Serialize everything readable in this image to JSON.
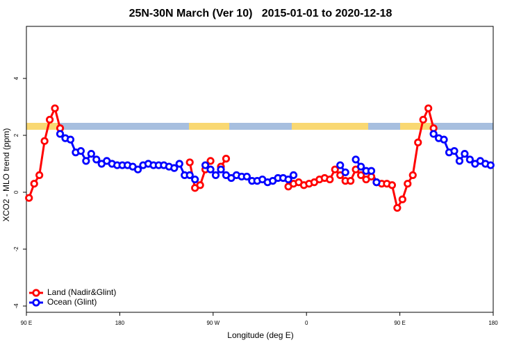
{
  "chart_data": {
    "type": "line",
    "title": "25N-30N March (Ver 10)   2015-01-01 to 2020-12-18",
    "xlabel": "Longitude (deg E)",
    "ylabel": "XCO2 - MLO trend (ppm)",
    "xlim": [
      90,
      540
    ],
    "ylim": [
      -4.22,
      5.83
    ],
    "xticks": [
      {
        "value": 90,
        "label": "90 E"
      },
      180,
      {
        "value": 270,
        "label": "90 W"
      },
      {
        "value": 360,
        "label": "0"
      },
      {
        "value": 450,
        "label": "90 E"
      },
      {
        "value": 540,
        "label": "180"
      }
    ],
    "yticks": [
      -4,
      -2,
      0,
      2,
      4
    ],
    "legend": "bottom-left",
    "x": [
      92.5,
      97.5,
      102.5,
      107.5,
      112.5,
      117.5,
      122.5,
      127.5,
      132.5,
      137.5,
      142.5,
      147.5,
      152.5,
      157.5,
      162.5,
      167.5,
      172.5,
      177.5,
      182.5,
      187.5,
      192.5,
      197.5,
      202.5,
      207.5,
      212.5,
      217.5,
      222.5,
      227.5,
      232.5,
      237.5,
      242.5,
      247.5,
      252.5,
      257.5,
      262.5,
      267.5,
      272.5,
      277.5,
      282.5,
      287.5,
      292.5,
      297.5,
      302.5,
      307.5,
      312.5,
      317.5,
      322.5,
      327.5,
      332.5,
      337.5,
      342.5,
      347.5,
      352.5,
      357.5,
      362.5,
      367.5,
      372.5,
      377.5,
      382.5,
      387.5,
      392.5,
      397.5,
      402.5,
      407.5,
      412.5,
      417.5,
      422.5,
      427.5,
      432.5,
      437.5,
      442.5,
      447.5,
      452.5,
      457.5,
      462.5,
      467.5,
      472.5,
      477.5,
      482.5,
      487.5,
      492.5,
      497.5,
      502.5,
      507.5,
      512.5,
      517.5,
      522.5,
      527.5,
      532.5,
      537.5
    ],
    "series": [
      {
        "name": "Land (Nadir&Glint)",
        "color": "#ff0000",
        "values": [
          -0.2,
          0.3,
          0.6,
          1.8,
          2.55,
          2.95,
          2.25,
          null,
          null,
          null,
          null,
          null,
          null,
          null,
          null,
          null,
          null,
          null,
          null,
          null,
          null,
          null,
          null,
          null,
          null,
          null,
          null,
          null,
          null,
          null,
          null,
          1.05,
          0.15,
          0.25,
          0.8,
          1.1,
          null,
          0.9,
          1.18,
          null,
          null,
          null,
          null,
          null,
          null,
          null,
          null,
          null,
          null,
          null,
          0.2,
          0.3,
          0.35,
          0.25,
          0.3,
          0.35,
          0.45,
          0.5,
          0.45,
          0.8,
          0.6,
          0.4,
          0.4,
          0.8,
          0.6,
          0.45,
          0.55,
          0.35,
          0.3,
          0.3,
          0.25,
          -0.55,
          -0.25,
          0.3,
          0.6,
          1.75,
          2.55,
          2.95,
          2.25,
          null,
          null,
          null,
          null,
          null,
          null,
          null,
          null,
          null,
          null,
          null
        ]
      },
      {
        "name": "Ocean (Glint)",
        "color": "#0000ff",
        "values": [
          null,
          null,
          null,
          null,
          null,
          null,
          2.05,
          1.9,
          1.85,
          1.4,
          1.45,
          1.1,
          1.35,
          1.15,
          1.0,
          1.1,
          1.0,
          0.95,
          0.95,
          0.95,
          0.9,
          0.8,
          0.95,
          1.0,
          0.95,
          0.95,
          0.95,
          0.9,
          0.85,
          1.0,
          0.6,
          0.6,
          0.45,
          null,
          0.95,
          0.8,
          0.6,
          0.8,
          0.6,
          0.5,
          0.6,
          0.55,
          0.55,
          0.4,
          0.4,
          0.45,
          0.35,
          0.4,
          0.5,
          0.5,
          0.45,
          0.6,
          null,
          null,
          null,
          null,
          null,
          null,
          null,
          null,
          0.95,
          0.7,
          null,
          1.15,
          0.9,
          0.75,
          0.75,
          0.35,
          null,
          null,
          null,
          null,
          null,
          null,
          null,
          null,
          null,
          null,
          2.05,
          1.9,
          1.85,
          1.4,
          1.45,
          1.1,
          1.35,
          1.15,
          1.0,
          1.1,
          1.0,
          0.95
        ]
      }
    ]
  }
}
